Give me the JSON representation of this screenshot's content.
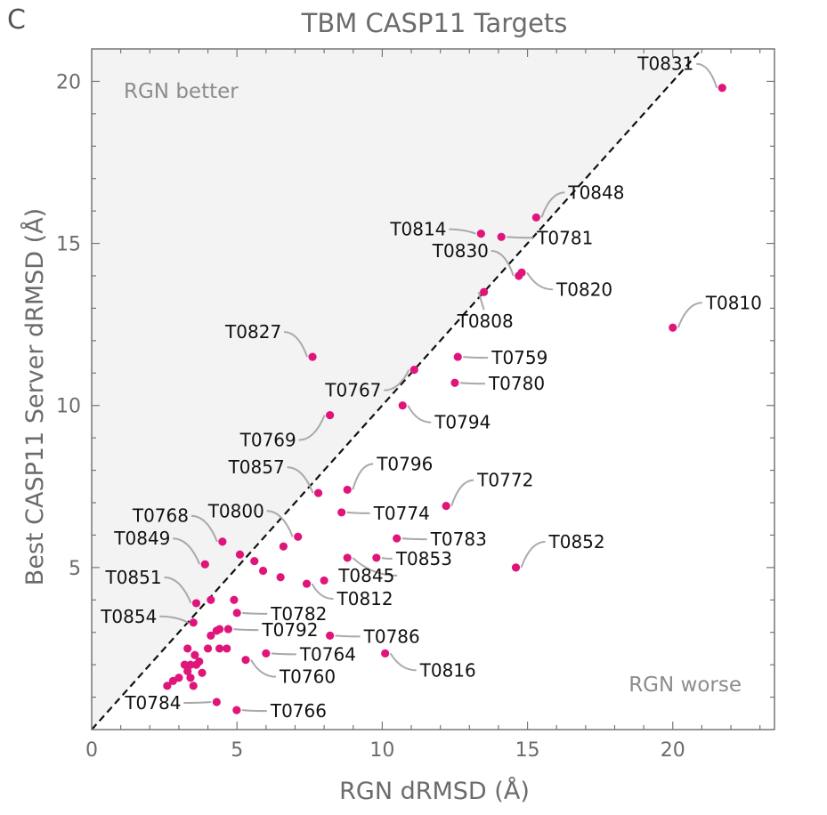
{
  "panel_letter": "C",
  "chart_data": {
    "type": "scatter",
    "title": "TBM CASP11 Targets",
    "xlabel": "RGN dRMSD (Å)",
    "ylabel": "Best CASP11 Server dRMSD (Å)",
    "xlim": [
      0,
      23.5
    ],
    "ylim": [
      0,
      21
    ],
    "x_ticks": [
      0,
      5,
      10,
      15,
      20
    ],
    "y_ticks": [
      5,
      10,
      15,
      20
    ],
    "grid": false,
    "diagonal_line": true,
    "region_labels": {
      "upper_left": "RGN better",
      "lower_right": "RGN worse"
    },
    "colors": {
      "point": "#e0157a",
      "shade": "#f3f3f3",
      "diagonal": "#111111",
      "leader": "#aaaaaa",
      "axis": "#777777"
    },
    "labeled_points": [
      {
        "label": "T0831",
        "x": 21.7,
        "y": 19.8
      },
      {
        "label": "T0848",
        "x": 15.3,
        "y": 15.8
      },
      {
        "label": "T0814",
        "x": 13.4,
        "y": 15.3
      },
      {
        "label": "T0781",
        "x": 14.1,
        "y": 15.2
      },
      {
        "label": "T0830",
        "x": 14.7,
        "y": 14.0
      },
      {
        "label": "T0820",
        "x": 14.8,
        "y": 14.1
      },
      {
        "label": "T0808",
        "x": 13.5,
        "y": 13.5
      },
      {
        "label": "T0810",
        "x": 20.0,
        "y": 12.4
      },
      {
        "label": "T0827",
        "x": 7.6,
        "y": 11.5
      },
      {
        "label": "T0759",
        "x": 12.6,
        "y": 11.5
      },
      {
        "label": "T0767",
        "x": 11.1,
        "y": 11.1
      },
      {
        "label": "T0780",
        "x": 12.5,
        "y": 10.7
      },
      {
        "label": "T0794",
        "x": 10.7,
        "y": 10.0
      },
      {
        "label": "T0769",
        "x": 8.2,
        "y": 9.7
      },
      {
        "label": "T0857",
        "x": 7.8,
        "y": 7.3
      },
      {
        "label": "T0796",
        "x": 8.8,
        "y": 7.4
      },
      {
        "label": "T0772",
        "x": 12.2,
        "y": 6.9
      },
      {
        "label": "T0774",
        "x": 8.6,
        "y": 6.7
      },
      {
        "label": "T0800",
        "x": 7.1,
        "y": 5.95
      },
      {
        "label": "T0768",
        "x": 4.5,
        "y": 5.8
      },
      {
        "label": "T0783",
        "x": 10.5,
        "y": 5.9
      },
      {
        "label": "T0852",
        "x": 14.6,
        "y": 5.0
      },
      {
        "label": "T0849",
        "x": 3.9,
        "y": 5.1
      },
      {
        "label": "T0853",
        "x": 9.8,
        "y": 5.3
      },
      {
        "label": "T0845",
        "x": 8.8,
        "y": 5.3
      },
      {
        "label": "T0812",
        "x": 7.4,
        "y": 4.5
      },
      {
        "label": "T0851",
        "x": 3.6,
        "y": 3.9
      },
      {
        "label": "T0782",
        "x": 5.0,
        "y": 3.6
      },
      {
        "label": "T0854",
        "x": 3.5,
        "y": 3.3
      },
      {
        "label": "T0792",
        "x": 4.7,
        "y": 3.1
      },
      {
        "label": "T0786",
        "x": 8.2,
        "y": 2.9
      },
      {
        "label": "T0764",
        "x": 6.0,
        "y": 2.35
      },
      {
        "label": "T0816",
        "x": 10.1,
        "y": 2.35
      },
      {
        "label": "T0760",
        "x": 5.3,
        "y": 2.15
      },
      {
        "label": "T0784",
        "x": 4.3,
        "y": 0.85
      },
      {
        "label": "T0766",
        "x": 4.99,
        "y": 0.6
      }
    ],
    "unlabeled_points": [
      {
        "x": 4.1,
        "y": 4.0
      },
      {
        "x": 4.9,
        "y": 4.0
      },
      {
        "x": 5.6,
        "y": 5.2
      },
      {
        "x": 5.1,
        "y": 5.4
      },
      {
        "x": 5.9,
        "y": 4.9
      },
      {
        "x": 6.5,
        "y": 4.7
      },
      {
        "x": 6.6,
        "y": 5.65
      },
      {
        "x": 8.0,
        "y": 4.6
      },
      {
        "x": 4.1,
        "y": 2.9
      },
      {
        "x": 4.3,
        "y": 3.05
      },
      {
        "x": 4.4,
        "y": 3.1
      },
      {
        "x": 4.0,
        "y": 2.5
      },
      {
        "x": 4.4,
        "y": 2.5
      },
      {
        "x": 4.65,
        "y": 2.5
      },
      {
        "x": 3.2,
        "y": 2.0
      },
      {
        "x": 3.4,
        "y": 2.0
      },
      {
        "x": 3.6,
        "y": 2.0
      },
      {
        "x": 3.55,
        "y": 2.3
      },
      {
        "x": 3.8,
        "y": 1.75
      },
      {
        "x": 3.3,
        "y": 1.8
      },
      {
        "x": 3.0,
        "y": 1.6
      },
      {
        "x": 2.8,
        "y": 1.5
      },
      {
        "x": 2.6,
        "y": 1.35
      },
      {
        "x": 3.5,
        "y": 1.35
      },
      {
        "x": 3.4,
        "y": 1.6
      },
      {
        "x": 3.7,
        "y": 2.1
      },
      {
        "x": 3.3,
        "y": 2.5
      }
    ]
  }
}
